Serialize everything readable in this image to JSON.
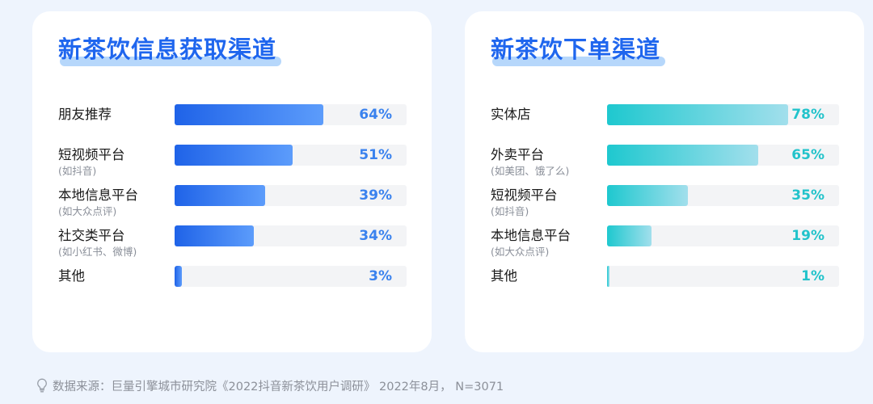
{
  "chart_data": [
    {
      "type": "bar",
      "orientation": "horizontal",
      "title": "新茶饮信息获取渠道",
      "categories": [
        "朋友推荐",
        "短视频平台",
        "本地信息平台",
        "社交类平台",
        "其他"
      ],
      "subtitles": [
        "",
        "(如抖音)",
        "(如大众点评)",
        "(如小红书、微博)",
        ""
      ],
      "values": [
        64,
        51,
        39,
        34,
        3
      ],
      "labels": [
        "64%",
        "51%",
        "39%",
        "34%",
        "3%"
      ],
      "xlim": [
        0,
        100
      ],
      "unit": "%",
      "color": "#1f63e8"
    },
    {
      "type": "bar",
      "orientation": "horizontal",
      "title": "新茶饮下单渠道",
      "categories": [
        "实体店",
        "外卖平台",
        "短视频平台",
        "本地信息平台",
        "其他"
      ],
      "subtitles": [
        "",
        "(如美团、饿了么)",
        "(如抖音)",
        "(如大众点评)",
        ""
      ],
      "values": [
        78,
        65,
        35,
        19,
        1
      ],
      "labels": [
        "78%",
        "65%",
        "35%",
        "19%",
        "1%"
      ],
      "xlim": [
        0,
        100
      ],
      "unit": "%",
      "color": "#1ec8cf"
    }
  ],
  "footer": {
    "text": "数据来源：巨量引擎城市研究院《2022抖音新茶饮用户调研》 2022年8月，  N=3071",
    "icon": "lightbulb-icon"
  }
}
